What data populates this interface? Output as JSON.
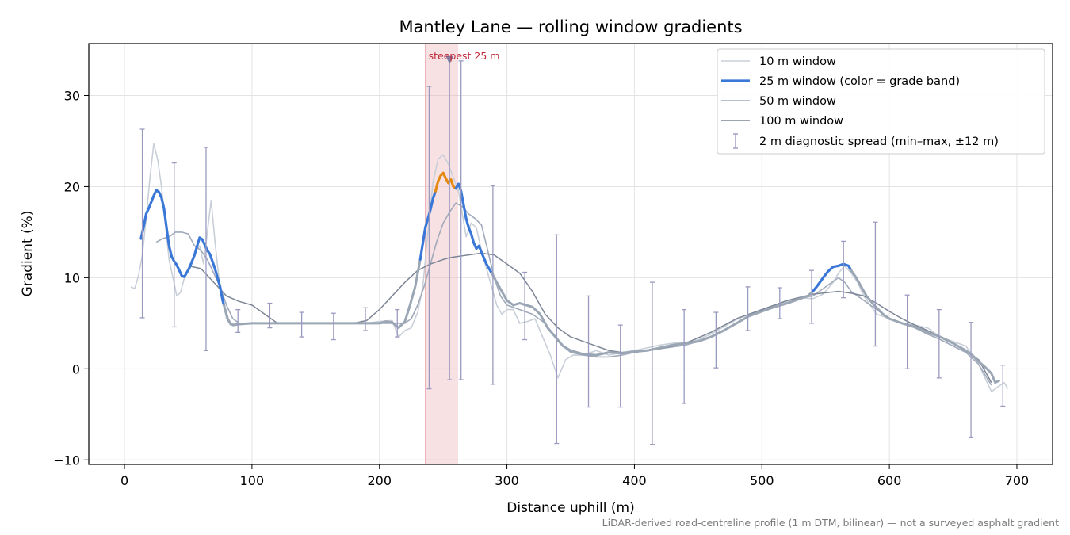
{
  "chart_data": {
    "type": "line",
    "title": "Mantley Lane — rolling window gradients",
    "xlabel": "Distance uphill (m)",
    "ylabel": "Gradient (%)",
    "xlim": [
      -28,
      728
    ],
    "ylim": [
      -10.5,
      35.7
    ],
    "xticks": [
      0,
      100,
      200,
      300,
      400,
      500,
      600,
      700
    ],
    "yticks": [
      -10,
      0,
      10,
      20,
      30
    ],
    "ytick_labels": [
      "−10",
      "0",
      "10",
      "20",
      "30"
    ],
    "grid": true,
    "legend_placement": "top-right",
    "footer_note": "LiDAR-derived road-centreline profile (1 m DTM, bilinear) — not a surveyed asphalt gradient",
    "highlight_band": {
      "x0": 236,
      "x1": 261,
      "label": "steepest 25 m",
      "marker_x": 255,
      "marker_y": 33.9
    },
    "colors": {
      "w10": "#c9cfd8",
      "w25_base": "#3a78d8",
      "w25_steep": "#e58a10",
      "w25_gentle": "#9ba6b5",
      "w50": "#a1aabb",
      "w100": "#7d8696",
      "errbar": "#9a9ac0",
      "band": "#e9a8ae",
      "annot": "#c0283a"
    },
    "series": [
      {
        "name": "10 m window",
        "x": [
          5,
          8,
          11,
          14,
          17,
          20,
          23,
          26,
          29,
          32,
          35,
          38,
          41,
          44,
          47,
          50,
          53,
          56,
          59,
          62,
          65,
          68,
          71,
          74,
          77,
          80,
          83,
          86,
          90,
          100,
          110,
          120,
          130,
          140,
          150,
          160,
          170,
          180,
          190,
          200,
          210,
          215,
          220,
          225,
          230,
          234,
          238,
          242,
          246,
          250,
          254,
          258,
          262,
          265,
          268,
          272,
          276,
          280,
          284,
          288,
          292,
          296,
          300,
          305,
          310,
          316,
          322,
          328,
          334,
          340,
          346,
          352,
          360,
          370,
          380,
          390,
          400,
          410,
          420,
          430,
          440,
          450,
          460,
          470,
          480,
          490,
          500,
          510,
          520,
          530,
          540,
          548,
          556,
          560,
          565,
          570,
          575,
          580,
          585,
          590,
          600,
          610,
          620,
          630,
          640,
          650,
          660,
          665,
          670,
          675,
          680,
          685,
          690,
          693
        ],
        "y": [
          9.0,
          8.8,
          10.2,
          12.5,
          16.5,
          21.0,
          24.7,
          23.0,
          20.0,
          16.0,
          12.0,
          10.0,
          8.0,
          8.4,
          10.0,
          11.0,
          12.0,
          13.0,
          13.5,
          11.5,
          15.0,
          18.5,
          14.0,
          10.0,
          7.5,
          5.5,
          4.8,
          5.0,
          5.0,
          5.0,
          5.0,
          5.0,
          5.0,
          5.0,
          5.0,
          5.0,
          5.0,
          5.0,
          5.0,
          5.2,
          5.3,
          3.5,
          4.2,
          4.5,
          6.2,
          9.0,
          15.0,
          20.5,
          23.0,
          23.5,
          22.5,
          21.0,
          19.5,
          17.0,
          14.5,
          16.0,
          15.5,
          13.0,
          11.0,
          9.0,
          7.0,
          6.0,
          6.5,
          6.5,
          5.0,
          5.2,
          5.5,
          3.5,
          1.5,
          -1.0,
          1.0,
          1.5,
          1.5,
          2.0,
          1.5,
          1.8,
          2.0,
          2.3,
          2.6,
          2.8,
          2.9,
          3.2,
          3.8,
          4.6,
          5.4,
          6.0,
          6.5,
          7.0,
          7.4,
          7.8,
          7.7,
          8.2,
          9.5,
          10.5,
          11.3,
          10.5,
          9.5,
          8.0,
          7.0,
          6.0,
          5.5,
          5.0,
          4.8,
          4.5,
          3.5,
          3.0,
          2.5,
          1.5,
          0.5,
          -1.0,
          -2.5,
          -2.0,
          -1.5,
          -2.2
        ]
      },
      {
        "name": "25 m window (color = grade band)",
        "x": [
          13,
          15,
          17,
          19,
          21,
          23,
          25,
          27,
          29,
          31,
          33,
          35,
          37,
          39,
          41,
          43,
          45,
          47,
          49,
          51,
          53,
          55,
          57,
          59,
          61,
          63,
          65,
          67,
          69,
          71,
          73,
          75,
          77,
          79,
          81,
          83,
          85,
          90,
          100,
          110,
          120,
          130,
          140,
          150,
          160,
          170,
          180,
          190,
          200,
          205,
          210,
          215,
          220,
          224,
          228,
          232,
          236,
          238,
          240,
          242,
          244,
          246,
          248,
          250,
          252,
          254,
          256,
          258,
          260,
          262,
          264,
          266,
          268,
          270,
          272,
          274,
          276,
          278,
          280,
          284,
          288,
          292,
          296,
          300,
          305,
          310,
          315,
          320,
          326,
          332,
          338,
          344,
          350,
          360,
          370,
          380,
          390,
          400,
          410,
          420,
          430,
          440,
          450,
          460,
          470,
          480,
          490,
          500,
          510,
          520,
          530,
          536,
          540,
          544,
          548,
          552,
          556,
          560,
          564,
          568,
          570,
          574,
          578,
          582,
          588,
          595,
          600,
          610,
          620,
          630,
          640,
          650,
          660,
          665,
          670,
          675,
          680,
          683,
          686
        ],
        "y": [
          14.3,
          15.6,
          17.0,
          17.6,
          18.3,
          19.0,
          19.6,
          19.4,
          18.8,
          17.6,
          15.5,
          13.5,
          12.3,
          11.8,
          11.4,
          10.8,
          10.2,
          10.1,
          10.6,
          11.1,
          11.8,
          12.5,
          13.5,
          14.4,
          14.2,
          13.6,
          13.0,
          12.6,
          11.8,
          11.0,
          10.0,
          9.0,
          7.5,
          6.5,
          5.5,
          5.0,
          4.8,
          4.9,
          5.0,
          5.0,
          5.0,
          5.0,
          5.0,
          5.0,
          5.0,
          5.0,
          5.0,
          5.0,
          5.0,
          5.2,
          5.1,
          4.5,
          5.2,
          7.0,
          9.0,
          12.0,
          15.5,
          16.5,
          17.5,
          18.7,
          19.5,
          20.6,
          21.2,
          21.5,
          20.9,
          20.4,
          20.8,
          20.0,
          19.8,
          20.3,
          19.5,
          18.0,
          16.5,
          15.5,
          14.8,
          13.8,
          13.2,
          13.5,
          12.8,
          11.5,
          10.5,
          9.5,
          8.5,
          7.5,
          7.0,
          7.2,
          7.0,
          6.8,
          6.0,
          4.5,
          3.5,
          2.5,
          2.0,
          1.6,
          1.5,
          1.8,
          1.7,
          1.9,
          2.0,
          2.3,
          2.6,
          2.8,
          3.0,
          3.5,
          4.2,
          5.0,
          5.8,
          6.3,
          6.8,
          7.2,
          7.7,
          8.0,
          8.5,
          9.2,
          10.0,
          10.7,
          11.2,
          11.3,
          11.5,
          11.3,
          10.8,
          10.0,
          9.0,
          8.0,
          7.0,
          6.0,
          5.5,
          5.0,
          4.6,
          4.0,
          3.5,
          2.8,
          2.0,
          1.5,
          0.8,
          0.2,
          -0.5,
          -1.5,
          -1.3
        ],
        "bands": [
          {
            "x_from": 13,
            "x_to": 78,
            "color": "w25_base"
          },
          {
            "x_from": 78,
            "x_to": 232,
            "color": "w25_gentle"
          },
          {
            "x_from": 232,
            "x_to": 244,
            "color": "w25_base"
          },
          {
            "x_from": 244,
            "x_to": 260,
            "color": "w25_steep"
          },
          {
            "x_from": 260,
            "x_to": 288,
            "color": "w25_base"
          },
          {
            "x_from": 288,
            "x_to": 540,
            "color": "w25_gentle"
          },
          {
            "x_from": 540,
            "x_to": 570,
            "color": "w25_base"
          },
          {
            "x_from": 570,
            "x_to": 686,
            "color": "w25_gentle"
          }
        ]
      },
      {
        "name": "50 m window",
        "x": [
          25,
          30,
          35,
          40,
          45,
          50,
          55,
          60,
          65,
          70,
          75,
          80,
          85,
          90,
          100,
          120,
          140,
          160,
          180,
          200,
          210,
          220,
          225,
          230,
          235,
          240,
          245,
          250,
          255,
          260,
          265,
          270,
          275,
          280,
          285,
          290,
          295,
          300,
          310,
          320,
          330,
          340,
          350,
          360,
          370,
          380,
          390,
          400,
          410,
          420,
          430,
          440,
          450,
          460,
          470,
          480,
          490,
          500,
          510,
          520,
          530,
          540,
          550,
          555,
          560,
          565,
          570,
          580,
          590,
          600,
          610,
          620,
          630,
          640,
          650,
          660,
          670,
          680
        ],
        "y": [
          13.9,
          14.3,
          14.5,
          15.0,
          15.0,
          14.8,
          13.5,
          13.0,
          12.0,
          10.5,
          9.0,
          7.0,
          5.5,
          5.0,
          5.0,
          5.0,
          5.0,
          5.0,
          5.0,
          5.0,
          5.0,
          5.0,
          5.5,
          7.0,
          9.0,
          11.5,
          14.0,
          16.0,
          17.2,
          18.2,
          17.8,
          17.0,
          16.5,
          15.8,
          13.0,
          10.0,
          8.0,
          7.0,
          6.5,
          6.0,
          5.0,
          3.0,
          1.8,
          1.5,
          1.3,
          1.3,
          1.5,
          1.8,
          2.0,
          2.2,
          2.4,
          2.6,
          3.0,
          3.5,
          4.2,
          5.0,
          5.8,
          6.5,
          7.0,
          7.5,
          7.8,
          8.0,
          9.0,
          9.5,
          10.0,
          9.5,
          8.5,
          7.5,
          6.5,
          5.5,
          5.0,
          4.5,
          3.8,
          3.2,
          2.5,
          1.8,
          0.5,
          -1.8
        ]
      },
      {
        "name": "100 m window",
        "x": [
          50,
          60,
          70,
          80,
          90,
          100,
          110,
          120,
          130,
          140,
          150,
          160,
          170,
          180,
          190,
          200,
          210,
          220,
          230,
          240,
          250,
          255,
          260,
          270,
          280,
          290,
          300,
          310,
          320,
          330,
          340,
          350,
          360,
          370,
          380,
          390,
          400,
          420,
          440,
          460,
          480,
          500,
          520,
          540,
          560,
          570,
          580,
          590,
          600,
          610,
          620,
          630,
          640,
          650,
          660,
          670,
          680
        ],
        "y": [
          11.3,
          11.0,
          9.5,
          8.0,
          7.4,
          7.0,
          6.0,
          5.0,
          5.0,
          5.0,
          5.0,
          5.0,
          5.0,
          5.0,
          5.3,
          6.5,
          8.0,
          9.5,
          10.8,
          11.5,
          12.0,
          12.2,
          12.3,
          12.5,
          12.7,
          12.5,
          11.5,
          10.5,
          8.5,
          6.0,
          4.5,
          3.5,
          3.0,
          2.5,
          2.0,
          1.8,
          1.8,
          2.2,
          2.8,
          4.0,
          5.5,
          6.5,
          7.5,
          8.2,
          8.5,
          8.3,
          8.0,
          7.2,
          6.3,
          5.5,
          4.8,
          4.2,
          3.5,
          2.8,
          2.0,
          1.0,
          -1.5
        ]
      }
    ],
    "diagnostic_spread": {
      "name": "2 m diagnostic spread (min–max, ±12 m)",
      "points": [
        {
          "x": 14,
          "min": 5.6,
          "max": 26.3
        },
        {
          "x": 39,
          "min": 4.6,
          "max": 22.6
        },
        {
          "x": 64,
          "min": 2.0,
          "max": 24.3
        },
        {
          "x": 89,
          "min": 4.0,
          "max": 6.5
        },
        {
          "x": 114,
          "min": 4.5,
          "max": 7.2
        },
        {
          "x": 139,
          "min": 3.5,
          "max": 6.2
        },
        {
          "x": 164,
          "min": 3.2,
          "max": 6.1
        },
        {
          "x": 189,
          "min": 4.2,
          "max": 6.7
        },
        {
          "x": 214,
          "min": 3.5,
          "max": 6.5
        },
        {
          "x": 239,
          "min": -2.2,
          "max": 31.0
        },
        {
          "x": 255,
          "min": -1.2,
          "max": 34.2
        },
        {
          "x": 264,
          "min": -1.2,
          "max": 33.8
        },
        {
          "x": 289,
          "min": -1.7,
          "max": 20.1
        },
        {
          "x": 314,
          "min": 3.2,
          "max": 10.6
        },
        {
          "x": 339,
          "min": -8.2,
          "max": 14.7
        },
        {
          "x": 364,
          "min": -4.2,
          "max": 8.0
        },
        {
          "x": 389,
          "min": -4.2,
          "max": 4.8
        },
        {
          "x": 414,
          "min": -8.3,
          "max": 9.5
        },
        {
          "x": 439,
          "min": -3.8,
          "max": 6.5
        },
        {
          "x": 464,
          "min": 0.1,
          "max": 6.2
        },
        {
          "x": 489,
          "min": 4.2,
          "max": 9.0
        },
        {
          "x": 514,
          "min": 5.5,
          "max": 8.9
        },
        {
          "x": 539,
          "min": 5.0,
          "max": 10.8
        },
        {
          "x": 564,
          "min": 7.8,
          "max": 14.0
        },
        {
          "x": 589,
          "min": 2.5,
          "max": 16.1
        },
        {
          "x": 614,
          "min": 0.0,
          "max": 8.1
        },
        {
          "x": 639,
          "min": -1.0,
          "max": 6.5
        },
        {
          "x": 664,
          "min": -7.5,
          "max": 5.1
        },
        {
          "x": 689,
          "min": -4.1,
          "max": 0.4
        }
      ]
    }
  }
}
